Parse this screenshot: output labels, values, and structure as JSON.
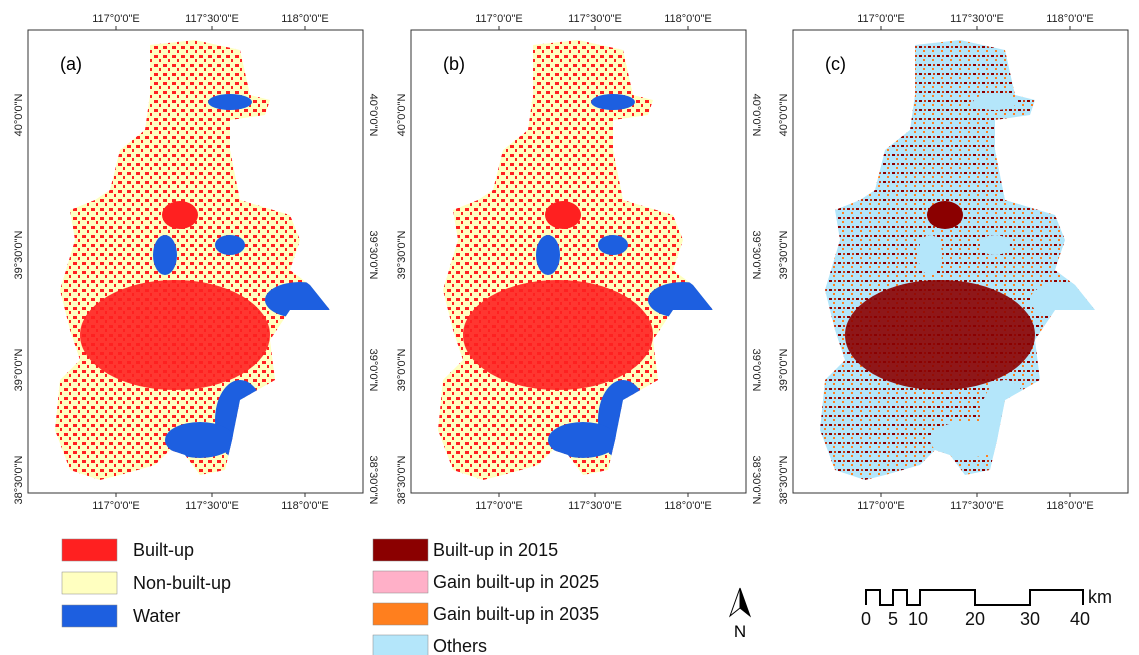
{
  "panels": [
    {
      "label": "(a)"
    },
    {
      "label": "(b)"
    },
    {
      "label": "(c)"
    }
  ],
  "axes": {
    "x_labels": [
      "117°0'0\"E",
      "117°30'0\"E",
      "118°0'0\"E"
    ],
    "y_labels": [
      "40°0'0\"N",
      "39°30'0\"N",
      "39°0'0\"N",
      "38°30'0\"N"
    ]
  },
  "legend_left": [
    {
      "label": "Built-up",
      "color": "#ff2020"
    },
    {
      "label": "Non-built-up",
      "color": "#ffffc0"
    },
    {
      "label": "Water",
      "color": "#1d5fe0"
    }
  ],
  "legend_right": [
    {
      "label": "Built-up in 2015",
      "color": "#8b0000"
    },
    {
      "label": "Gain built-up in 2025",
      "color": "#ffb0c8"
    },
    {
      "label": "Gain built-up in 2035",
      "color": "#ff7f1e"
    },
    {
      "label": "Others",
      "color": "#b4e6fa"
    }
  ],
  "north": "N",
  "scale_bar": {
    "ticks": [
      "0",
      "5",
      "10",
      "20",
      "30",
      "40"
    ],
    "unit": "km"
  }
}
